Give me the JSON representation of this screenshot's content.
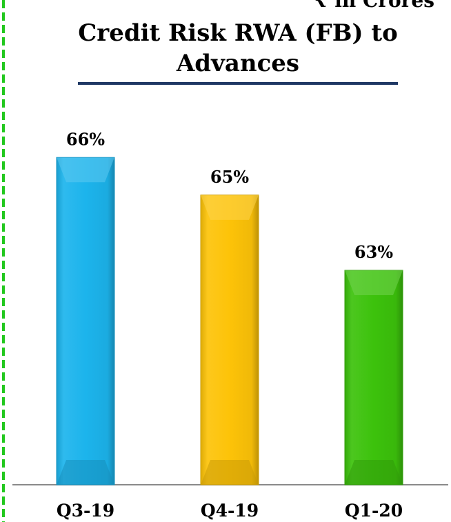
{
  "header": {
    "corner_text": "₹ in Crores"
  },
  "colors": {
    "bar_blue": "#1cb4ec",
    "bar_yellow": "#fdc308",
    "bar_green": "#3cc20c",
    "title_rule": "#1f3864",
    "baseline": "#8a8a8a"
  },
  "chart_data": {
    "type": "bar",
    "title": "Credit Risk RWA (FB) to Advances",
    "xlabel": "",
    "ylabel": "",
    "categories": [
      "Q3-19",
      "Q4-19",
      "Q1-20"
    ],
    "values": [
      66,
      65,
      63
    ],
    "data_labels": [
      "66%",
      "65%",
      "63%"
    ],
    "unit": "%",
    "ylim": [
      57.3,
      66.5
    ],
    "grid": false,
    "legend": "none"
  }
}
